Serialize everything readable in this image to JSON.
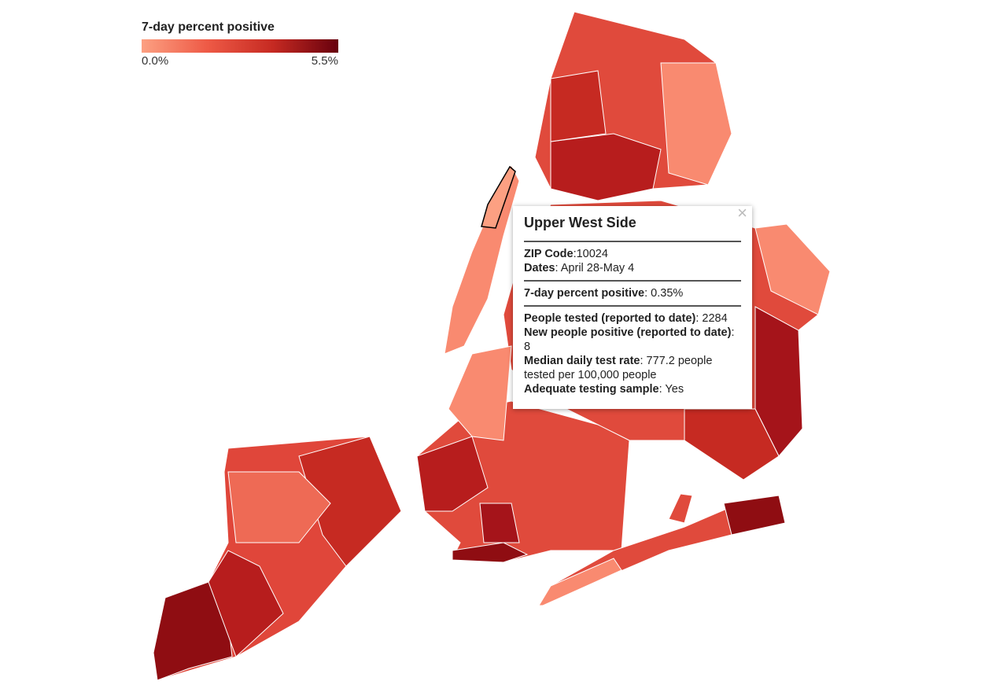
{
  "legend": {
    "title": "7-day percent positive",
    "min_label": "0.0%",
    "max_label": "5.5%",
    "colors": [
      "#fca082",
      "#ee5a46",
      "#c62a22",
      "#67000d"
    ]
  },
  "tooltip": {
    "title": "Upper West Side",
    "groups": [
      [
        {
          "label": "ZIP Code",
          "value": ":10024"
        },
        {
          "label": "Dates",
          "value": ": April 28-May 4"
        }
      ],
      [
        {
          "label": "7-day percent positive",
          "value": ": 0.35%"
        }
      ],
      [
        {
          "label": "People tested (reported to date)",
          "value": ": 2284"
        },
        {
          "label": "New people positive (reported to date)",
          "value": ": 8"
        },
        {
          "label": "Median daily test rate",
          "value": ": 777.2 people tested per 100,000 people"
        },
        {
          "label": "Adequate testing sample",
          "value": ": Yes"
        }
      ]
    ]
  }
}
